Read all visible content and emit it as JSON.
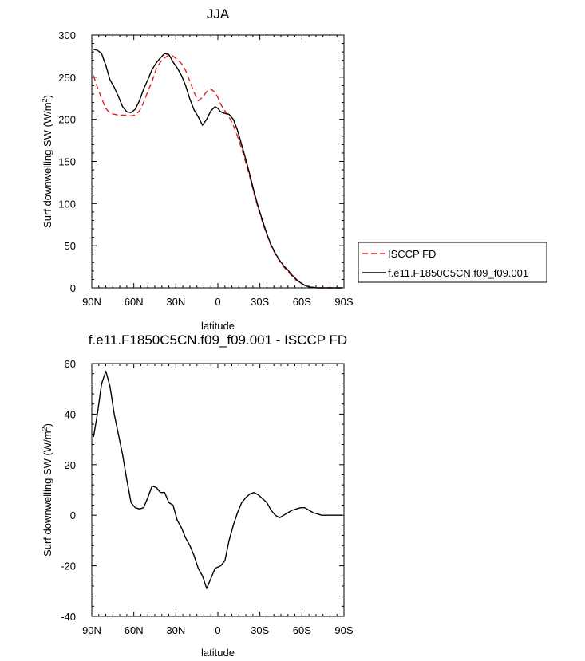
{
  "chart_data": [
    {
      "type": "line",
      "title": "JJA",
      "xlabel": "latitude",
      "ylabel_prefix": "Surf downwelling SW (W/m",
      "ylabel_sup": "2",
      "ylabel_suffix": ")",
      "xlim": [
        90,
        -90
      ],
      "ylim": [
        0,
        300
      ],
      "xticks": [
        90,
        60,
        30,
        0,
        -30,
        -60,
        -90
      ],
      "xtick_labels": [
        "90N",
        "60N",
        "30N",
        "0",
        "30S",
        "60S",
        "90S"
      ],
      "yticks": [
        0,
        50,
        100,
        150,
        200,
        250,
        300
      ],
      "ytick_labels": [
        "0",
        "50",
        "100",
        "150",
        "200",
        "250",
        "300"
      ],
      "legend": "outside-right",
      "series": [
        {
          "name": "ISCCP FD",
          "style": "dashed",
          "color": "#e02020",
          "x": [
            88.75,
            86,
            83,
            80,
            77,
            74,
            71,
            68,
            65,
            62,
            59,
            56,
            53,
            50,
            47,
            44,
            41,
            38,
            35,
            32,
            29,
            26,
            23,
            20,
            17,
            14,
            11,
            8,
            5,
            2,
            0,
            -2,
            -5,
            -8,
            -11,
            -14,
            -17,
            -20,
            -23,
            -26,
            -29,
            -32,
            -35,
            -38,
            -41,
            -44,
            -47,
            -50,
            -53,
            -56,
            -59,
            -62,
            -65,
            -68,
            -71,
            -74,
            -77,
            -80,
            -83,
            -86,
            -88.75
          ],
          "y": [
            252,
            238,
            225,
            213,
            207,
            206,
            205,
            205,
            205,
            204,
            205,
            210,
            220,
            233,
            245,
            260,
            268,
            273,
            276,
            275,
            271,
            266,
            258,
            245,
            232,
            222,
            226,
            233,
            236,
            232,
            226,
            218,
            210,
            203,
            193,
            180,
            165,
            148,
            130,
            111,
            93,
            77,
            63,
            50,
            40,
            32,
            25,
            19,
            14,
            9,
            6,
            3,
            1,
            0.5,
            0,
            0,
            0,
            0,
            0,
            0,
            0
          ]
        },
        {
          "name": "f.e11.F1850C5CN.f09_f09.001",
          "style": "solid",
          "color": "#000000",
          "x": [
            88.75,
            86,
            83,
            80,
            77,
            74,
            71,
            68,
            65,
            62,
            59,
            56,
            53,
            50,
            47,
            44,
            41,
            38,
            35,
            32,
            29,
            26,
            23,
            20,
            17,
            14,
            11,
            8,
            5,
            2,
            0,
            -2,
            -5,
            -8,
            -11,
            -14,
            -17,
            -20,
            -23,
            -26,
            -29,
            -32,
            -35,
            -38,
            -41,
            -44,
            -47,
            -50,
            -53,
            -56,
            -59,
            -62,
            -65,
            -68,
            -71,
            -74,
            -77,
            -80,
            -83,
            -86,
            -88.75
          ],
          "y": [
            283,
            282,
            278,
            264,
            247,
            238,
            227,
            215,
            209,
            208,
            212,
            222,
            236,
            247,
            259,
            267,
            273,
            278,
            277,
            268,
            261,
            252,
            240,
            224,
            211,
            203,
            193,
            200,
            210,
            215,
            213,
            209,
            207,
            206,
            200,
            187,
            170,
            152,
            133,
            113,
            95,
            79,
            64,
            51,
            41,
            33,
            26,
            21,
            15,
            10,
            6,
            3,
            1,
            0.5,
            0,
            0,
            0,
            0,
            0,
            0,
            0
          ]
        }
      ]
    },
    {
      "type": "line",
      "title": "f.e11.F1850C5CN.f09_f09.001 - ISCCP FD",
      "xlabel": "latitude",
      "ylabel_prefix": "Surf downwelling SW (W/m",
      "ylabel_sup": "2",
      "ylabel_suffix": ")",
      "xlim": [
        90,
        -90
      ],
      "ylim": [
        -40,
        60
      ],
      "xticks": [
        90,
        60,
        30,
        0,
        -30,
        -60,
        -90
      ],
      "xtick_labels": [
        "90N",
        "60N",
        "30N",
        "0",
        "30S",
        "60S",
        "90S"
      ],
      "yticks": [
        -40,
        -20,
        0,
        20,
        40,
        60
      ],
      "ytick_labels": [
        "-40",
        "-20",
        "0",
        "20",
        "40",
        "60"
      ],
      "series": [
        {
          "style": "solid",
          "color": "#000000",
          "x": [
            88.75,
            86,
            83,
            80,
            77,
            74,
            71,
            68,
            65,
            62,
            59,
            56,
            53,
            50,
            47,
            44,
            41,
            38,
            35,
            32,
            29,
            26,
            23,
            20,
            17,
            14,
            11,
            8,
            5,
            2,
            0,
            -2,
            -5,
            -8,
            -11,
            -14,
            -17,
            -20,
            -23,
            -26,
            -29,
            -32,
            -35,
            -38,
            -41,
            -44,
            -47,
            -50,
            -53,
            -56,
            -59,
            -62,
            -65,
            -68,
            -71,
            -74,
            -77,
            -80,
            -83,
            -86,
            -88.75
          ],
          "y": [
            31,
            40,
            52,
            57,
            51,
            40,
            32,
            24,
            14,
            5,
            3,
            2.5,
            3,
            7,
            11.5,
            11,
            9,
            9,
            5,
            4,
            -2,
            -5,
            -9,
            -12,
            -16,
            -21,
            -24,
            -29,
            -25,
            -21,
            -20.5,
            -20,
            -18,
            -10,
            -4,
            1,
            5,
            7,
            8.5,
            9,
            8,
            6.5,
            5,
            2,
            0,
            -1,
            0,
            1,
            2,
            2.5,
            3,
            3,
            2,
            1,
            0.5,
            0,
            0,
            0,
            0,
            0,
            0
          ]
        }
      ]
    }
  ]
}
